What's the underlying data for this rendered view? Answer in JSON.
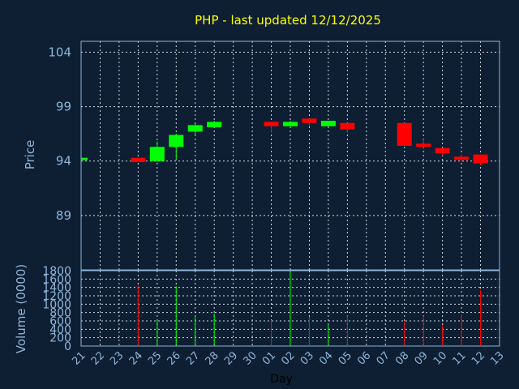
{
  "title": "PHP - last updated 12/12/2025",
  "colors": {
    "background": "#0e1f33",
    "title": "#ffff00",
    "text": "#8fb4d9",
    "frame": "#8fb4d9",
    "grid": "#d0d8e0",
    "up": "#00ff00",
    "down": "#ff0000"
  },
  "chart_data": [
    {
      "type": "candlestick",
      "ylabel": "Price",
      "ylim": [
        84,
        105
      ],
      "yticks": [
        89,
        94,
        99,
        104
      ],
      "grid": true,
      "x": [
        "21",
        "22",
        "23",
        "24",
        "25",
        "26",
        "27",
        "28",
        "29",
        "30",
        "01",
        "02",
        "03",
        "04",
        "05",
        "06",
        "07",
        "08",
        "09",
        "10",
        "11",
        "12",
        "13"
      ],
      "ohlc": [
        {
          "day": "21",
          "open": 94.3,
          "high": 94.3,
          "low": 94.3,
          "close": 94.3
        },
        {
          "day": "24",
          "open": 94.3,
          "high": 94.3,
          "low": 93.9,
          "close": 93.9
        },
        {
          "day": "25",
          "open": 94.0,
          "high": 95.8,
          "low": 93.9,
          "close": 95.3
        },
        {
          "day": "26",
          "open": 95.3,
          "high": 96.5,
          "low": 94.1,
          "close": 96.4
        },
        {
          "day": "27",
          "open": 96.7,
          "high": 97.4,
          "low": 96.3,
          "close": 97.3
        },
        {
          "day": "28",
          "open": 97.1,
          "high": 97.7,
          "low": 97.1,
          "close": 97.6
        },
        {
          "day": "01",
          "open": 97.6,
          "high": 97.6,
          "low": 96.6,
          "close": 97.2
        },
        {
          "day": "02",
          "open": 97.2,
          "high": 97.7,
          "low": 97.1,
          "close": 97.6
        },
        {
          "day": "03",
          "open": 97.9,
          "high": 97.9,
          "low": 97.2,
          "close": 97.5
        },
        {
          "day": "04",
          "open": 97.2,
          "high": 97.7,
          "low": 97.2,
          "close": 97.7
        },
        {
          "day": "05",
          "open": 97.5,
          "high": 97.5,
          "low": 96.6,
          "close": 96.9
        },
        {
          "day": "08",
          "open": 97.5,
          "high": 97.5,
          "low": 95.4,
          "close": 95.4
        },
        {
          "day": "09",
          "open": 95.6,
          "high": 96.0,
          "low": 95.1,
          "close": 95.3
        },
        {
          "day": "10",
          "open": 95.2,
          "high": 95.2,
          "low": 94.5,
          "close": 94.7
        },
        {
          "day": "11",
          "open": 94.4,
          "high": 94.6,
          "low": 93.9,
          "close": 94.1
        },
        {
          "day": "12",
          "open": 94.6,
          "high": 94.6,
          "low": 93.6,
          "close": 93.8
        }
      ]
    },
    {
      "type": "bar",
      "ylabel": "Volume (0000)",
      "xlabel": "Day",
      "ylim": [
        0,
        1800
      ],
      "yticks": [
        0,
        200,
        400,
        600,
        800,
        1000,
        1200,
        1400,
        1600,
        1800
      ],
      "grid": true,
      "bars": [
        {
          "day": "24",
          "value": 1450,
          "direction": "down"
        },
        {
          "day": "25",
          "value": 640,
          "direction": "up"
        },
        {
          "day": "26",
          "value": 1430,
          "direction": "up"
        },
        {
          "day": "27",
          "value": 720,
          "direction": "up"
        },
        {
          "day": "28",
          "value": 780,
          "direction": "up"
        },
        {
          "day": "01",
          "value": 620,
          "direction": "down"
        },
        {
          "day": "02",
          "value": 1780,
          "direction": "up"
        },
        {
          "day": "03",
          "value": 700,
          "direction": "down"
        },
        {
          "day": "04",
          "value": 510,
          "direction": "up"
        },
        {
          "day": "05",
          "value": 730,
          "direction": "down"
        },
        {
          "day": "08",
          "value": 590,
          "direction": "down"
        },
        {
          "day": "09",
          "value": 720,
          "direction": "down"
        },
        {
          "day": "10",
          "value": 500,
          "direction": "down"
        },
        {
          "day": "11",
          "value": 750,
          "direction": "down"
        },
        {
          "day": "12",
          "value": 1340,
          "direction": "down"
        }
      ]
    }
  ]
}
